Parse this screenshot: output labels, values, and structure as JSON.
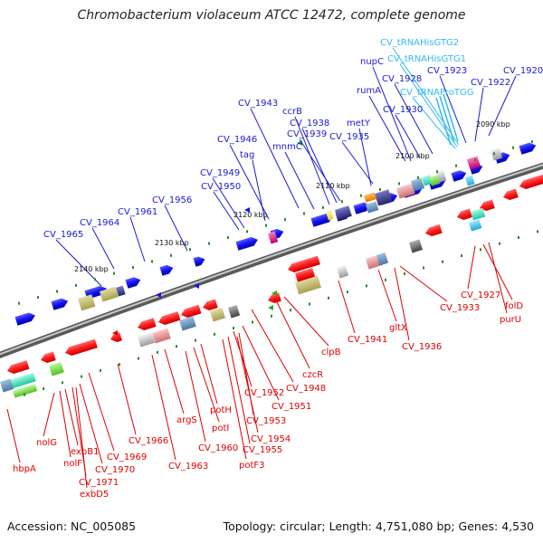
{
  "title": "Chromobacterium violaceum ATCC 12472, complete genome",
  "footer": {
    "accession": "Accession: NC_005085",
    "topology": "Topology: circular; Length: 4,751,080 bp; Genes: 4,530"
  },
  "ticks": [
    "2090 kbp",
    "2100 kbp",
    "2110 kbp",
    "2120 kbp",
    "2130 kbp",
    "2140 kbp"
  ],
  "colors": {
    "forward_label": "#1a1ad6",
    "reverse_label": "#e00000",
    "trna_label": "#33bbee",
    "backbone": "#777777"
  },
  "labels_top": [
    {
      "text": "CV_tRNAHisGTG2",
      "kind": "trna"
    },
    {
      "text": "CV_tRNAHisGTG1",
      "kind": "trna"
    },
    {
      "text": "CV_tRNAProTGG",
      "kind": "trna"
    },
    {
      "text": "nupC",
      "kind": "forward"
    },
    {
      "text": "CV_1920",
      "kind": "forward"
    },
    {
      "text": "CV_1923",
      "kind": "forward"
    },
    {
      "text": "CV_1922",
      "kind": "forward"
    },
    {
      "text": "CV_1928",
      "kind": "forward"
    },
    {
      "text": "rumA",
      "kind": "forward"
    },
    {
      "text": "CV_1930",
      "kind": "forward"
    },
    {
      "text": "CV_1943",
      "kind": "forward"
    },
    {
      "text": "ccrB",
      "kind": "forward"
    },
    {
      "text": "CV_1938",
      "kind": "forward"
    },
    {
      "text": "metY",
      "kind": "forward"
    },
    {
      "text": "CV_1939",
      "kind": "forward"
    },
    {
      "text": "CV_1935",
      "kind": "forward"
    },
    {
      "text": "CV_1946",
      "kind": "forward"
    },
    {
      "text": "mnmC",
      "kind": "forward"
    },
    {
      "text": "tag",
      "kind": "forward"
    },
    {
      "text": "CV_1949",
      "kind": "forward"
    },
    {
      "text": "CV_1950",
      "kind": "forward"
    },
    {
      "text": "CV_1956",
      "kind": "forward"
    },
    {
      "text": "CV_1961",
      "kind": "forward"
    },
    {
      "text": "CV_1964",
      "kind": "forward"
    },
    {
      "text": "CV_1965",
      "kind": "forward"
    }
  ],
  "labels_bottom": [
    {
      "text": "CV_1927",
      "kind": "reverse"
    },
    {
      "text": "folD",
      "kind": "reverse"
    },
    {
      "text": "purU",
      "kind": "reverse"
    },
    {
      "text": "CV_1933",
      "kind": "reverse"
    },
    {
      "text": "gltX",
      "kind": "reverse"
    },
    {
      "text": "CV_1936",
      "kind": "reverse"
    },
    {
      "text": "CV_1941",
      "kind": "reverse"
    },
    {
      "text": "clpB",
      "kind": "reverse"
    },
    {
      "text": "czcR",
      "kind": "reverse"
    },
    {
      "text": "CV_1948",
      "kind": "reverse"
    },
    {
      "text": "CV_1951",
      "kind": "reverse"
    },
    {
      "text": "CV_1952",
      "kind": "reverse"
    },
    {
      "text": "CV_1953",
      "kind": "reverse"
    },
    {
      "text": "CV_1954",
      "kind": "reverse"
    },
    {
      "text": "CV_1955",
      "kind": "reverse"
    },
    {
      "text": "potH",
      "kind": "reverse"
    },
    {
      "text": "potI",
      "kind": "reverse"
    },
    {
      "text": "argS",
      "kind": "reverse"
    },
    {
      "text": "CV_1960",
      "kind": "reverse"
    },
    {
      "text": "potF3",
      "kind": "reverse"
    },
    {
      "text": "CV_1963",
      "kind": "reverse"
    },
    {
      "text": "CV_1966",
      "kind": "reverse"
    },
    {
      "text": "CV_1969",
      "kind": "reverse"
    },
    {
      "text": "CV_1970",
      "kind": "reverse"
    },
    {
      "text": "CV_1971",
      "kind": "reverse"
    },
    {
      "text": "exbB1",
      "kind": "reverse"
    },
    {
      "text": "nolG",
      "kind": "reverse"
    },
    {
      "text": "nolF",
      "kind": "reverse"
    },
    {
      "text": "exbD5",
      "kind": "reverse"
    },
    {
      "text": "hbpA",
      "kind": "reverse"
    }
  ]
}
